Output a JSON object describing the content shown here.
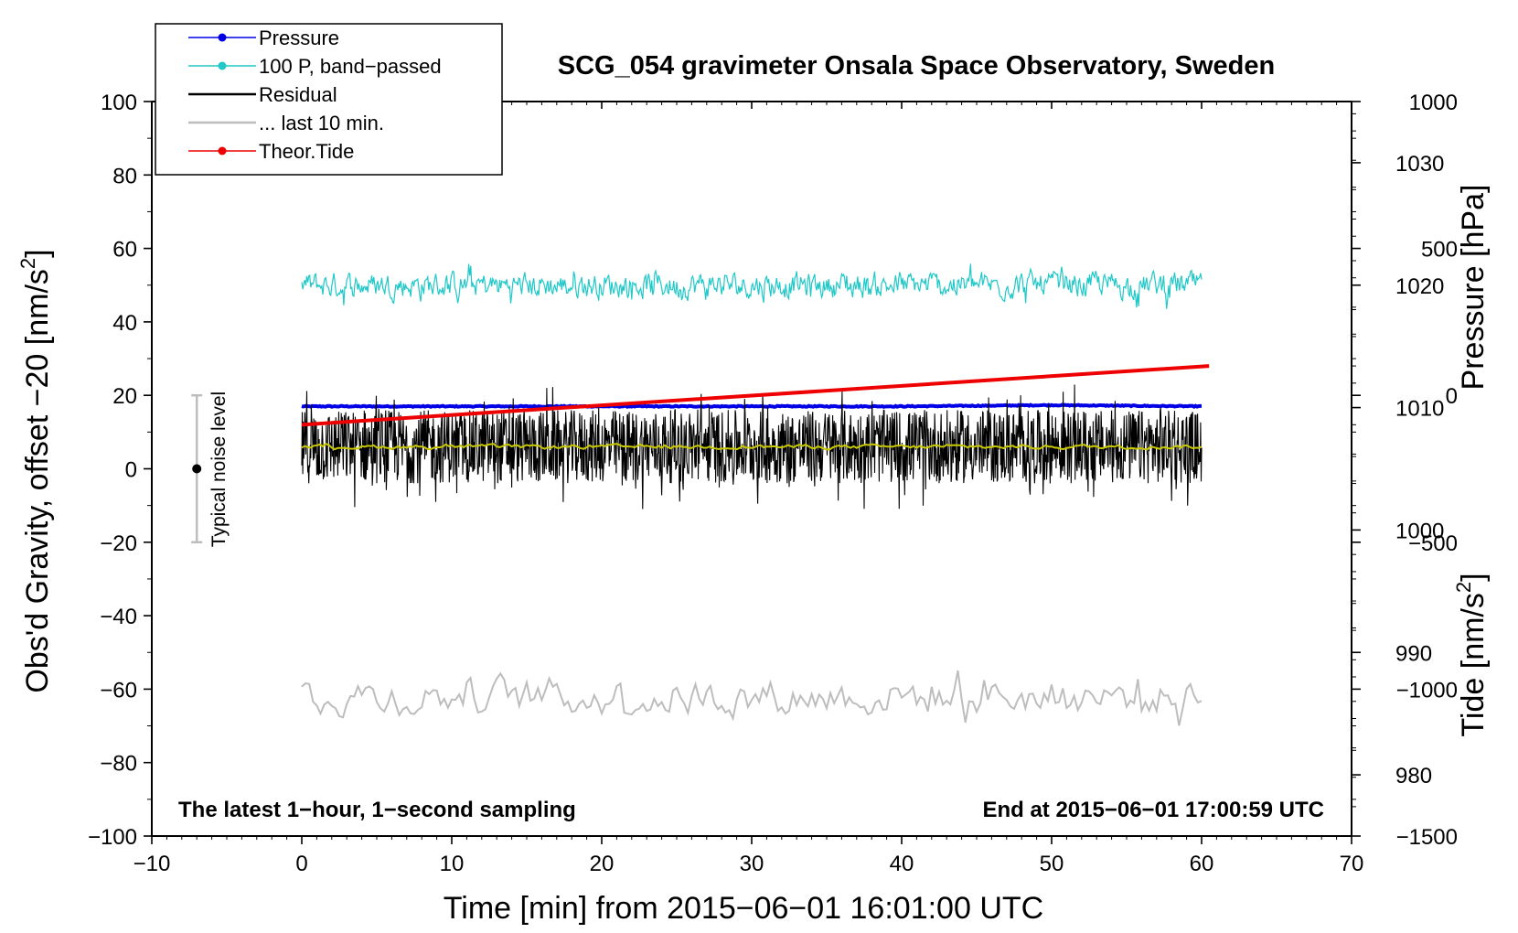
{
  "chart_data": {
    "type": "line",
    "title": "SCG_054 gravimeter Onsala Space Observatory, Sweden",
    "xlabel": "Time [min] from 2015−06−01 16:01:00 UTC",
    "ylabel_left": "Obs'd Gravity, offset −20 [nm/s",
    "ylabel_left_sup": "2",
    "ylabel_left_end": "]",
    "ylabel_right_pressure": "Pressure [hPa]",
    "ylabel_right_tide": "Tide [nm/s",
    "ylabel_right_tide_sup": "2",
    "ylabel_right_tide_end": "]",
    "note_left": "The latest 1−hour, 1−second sampling",
    "note_right": "End at 2015−06−01 17:00:59 UTC",
    "noise_label": "Typical noise level",
    "xlim": [
      -10,
      70
    ],
    "ylim_left": [
      -100,
      100
    ],
    "ylim_pressure": [
      975,
      1035
    ],
    "ylim_tide": [
      -1500,
      1000
    ],
    "x_ticks": [
      -10,
      0,
      10,
      20,
      30,
      40,
      50,
      60,
      70
    ],
    "x_tick_labels": [
      "−10",
      "0",
      "10",
      "20",
      "30",
      "40",
      "50",
      "60",
      "70"
    ],
    "y_ticks_left": [
      100,
      80,
      60,
      40,
      20,
      0,
      -20,
      -40,
      -60,
      -80,
      -100
    ],
    "y_tick_labels_left": [
      "100",
      "80",
      "60",
      "40",
      "20",
      "0",
      "−20",
      "−40",
      "−60",
      "−80",
      "−100"
    ],
    "pressure_ticks": [
      1030,
      1020,
      1010,
      1000,
      990,
      980
    ],
    "pressure_tick_labels": [
      "1030",
      "1020",
      "1010",
      "1000",
      "990",
      "980"
    ],
    "tide_ticks": [
      1000,
      500,
      0,
      -500,
      -1000,
      -1500
    ],
    "tide_tick_labels": [
      "1000",
      "500",
      "0",
      "−500",
      "−1000",
      "−1500"
    ],
    "legend": [
      {
        "label": "Pressure",
        "color": "#0000e6",
        "marker": true
      },
      {
        "label": "100 P, band−passed",
        "color": "#20c8c8",
        "marker": true
      },
      {
        "label": "Residual",
        "color": "#000000",
        "marker": false
      },
      {
        "label": "... last 10 min.",
        "color": "#bdbdbd",
        "marker": false
      },
      {
        "label": "Theor.Tide",
        "color": "#ee0000",
        "marker": true
      }
    ],
    "series": [
      {
        "name": "Pressure",
        "axis": "pressure",
        "color": "#0000e6",
        "x": [
          0,
          10,
          20,
          30,
          40,
          50,
          60
        ],
        "values": [
          1010.1,
          1010.1,
          1010.1,
          1010.1,
          1010.1,
          1010.2,
          1010.1
        ]
      },
      {
        "name": "100 P, band-passed",
        "axis": "left",
        "color": "#20c8c8",
        "baseline": 50,
        "amplitude": 6,
        "x": [
          0,
          60
        ]
      },
      {
        "name": "Residual",
        "axis": "left",
        "color": "#000000",
        "baseline": 6,
        "amplitude": 10,
        "x": [
          0,
          60
        ]
      },
      {
        "name": "Residual smoothed",
        "axis": "left",
        "color": "#c8c800",
        "baseline": 6,
        "amplitude": 1,
        "x": [
          0,
          60
        ]
      },
      {
        "name": "... last 10 min.",
        "axis": "left",
        "color": "#bdbdbd",
        "baseline": -62,
        "amplitude": 9,
        "x": [
          0,
          60
        ]
      },
      {
        "name": "Theor.Tide",
        "axis": "tide",
        "color": "#ee0000",
        "x": [
          0,
          60.5
        ],
        "values": [
          -100,
          100
        ]
      }
    ],
    "noise_bar": {
      "x": -7,
      "center": 0,
      "low": -20,
      "high": 20
    }
  }
}
